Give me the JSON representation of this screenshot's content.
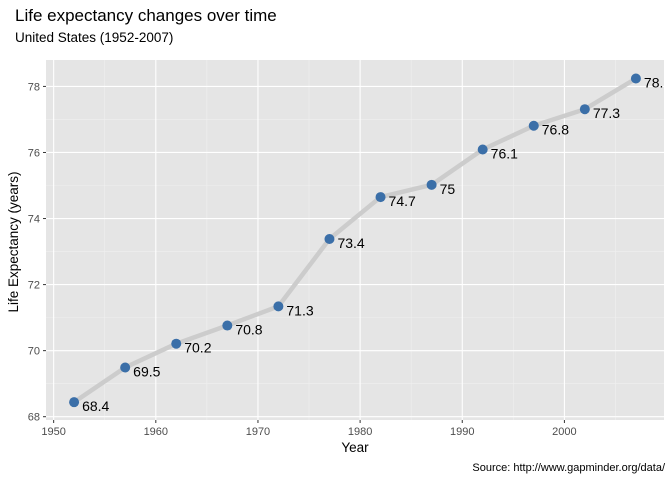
{
  "chart_data": {
    "type": "line",
    "title": "Life expectancy changes over time",
    "subtitle": "United States (1952-2007)",
    "xlabel": "Year",
    "ylabel": "Life Expectancy (years)",
    "caption": "Source: http://www.gapminder.org/data/",
    "xlim": [
      1949.25,
      2009.75
    ],
    "ylim": [
      67.9,
      78.8
    ],
    "x_ticks": [
      1950,
      1960,
      1970,
      1980,
      1990,
      2000
    ],
    "y_ticks": [
      68,
      70,
      72,
      74,
      76,
      78
    ],
    "grid": true,
    "x": [
      1952,
      1957,
      1962,
      1967,
      1972,
      1977,
      1982,
      1987,
      1992,
      1997,
      2002,
      2007
    ],
    "y": [
      68.44,
      69.49,
      70.21,
      70.76,
      71.34,
      73.38,
      74.65,
      75.02,
      76.09,
      76.81,
      77.31,
      78.24
    ],
    "labels": [
      "68.4",
      "69.5",
      "70.2",
      "70.8",
      "71.3",
      "73.4",
      "74.7",
      "75",
      "76.1",
      "76.8",
      "77.3",
      "78."
    ],
    "colors": {
      "panel": "#e5e5e5",
      "grid_major": "#ffffff",
      "grid_minor": "#f0f0f0",
      "line": "#cccccc",
      "point": "#3b6fa8"
    }
  }
}
